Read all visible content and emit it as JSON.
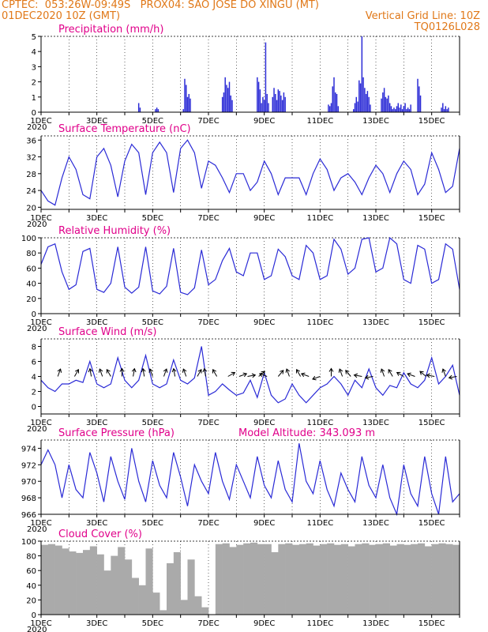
{
  "header": {
    "line1_left": "CPTEC:  053:26W-09:49S   PROX04: SAO JOSE DO XINGU (MT)",
    "line2_left": "01DEC2020 10Z (GMT)",
    "line2_right": "Vertical Grid Line: 10Z",
    "line3_right": "TQ0126L028"
  },
  "colors": {
    "header": "#e07818",
    "title": "#e0008a",
    "line": "#2a2ad6",
    "cloud": "#aaaaaa",
    "arrow": "#000000"
  },
  "x_axis": {
    "days": 15,
    "labels": [
      "1DEC",
      "3DEC",
      "5DEC",
      "7DEC",
      "9DEC",
      "11DEC",
      "13DEC",
      "15DEC"
    ],
    "label_days": [
      0,
      2,
      4,
      6,
      8,
      10,
      12,
      14
    ],
    "year_label": "2020"
  },
  "chart_data": [
    {
      "id": "precip",
      "type": "bar",
      "title": "Precipitation (mm/h)",
      "xlabel": "",
      "ylabel": "",
      "ylim": [
        0,
        5
      ],
      "yticks": [
        0,
        1,
        2,
        3,
        4,
        5
      ],
      "x": [
        3.5,
        3.55,
        4.1,
        4.15,
        4.2,
        5.1,
        5.15,
        5.2,
        5.25,
        5.3,
        5.35,
        6.5,
        6.55,
        6.6,
        6.65,
        6.7,
        6.75,
        6.8,
        6.85,
        7.75,
        7.8,
        7.85,
        7.9,
        7.95,
        8.0,
        8.05,
        8.1,
        8.15,
        8.3,
        8.35,
        8.4,
        8.45,
        8.5,
        8.55,
        8.6,
        8.65,
        8.7,
        8.75,
        10.3,
        10.35,
        10.4,
        10.45,
        10.5,
        10.55,
        10.6,
        10.65,
        11.2,
        11.25,
        11.3,
        11.35,
        11.4,
        11.45,
        11.5,
        11.55,
        11.6,
        11.65,
        11.7,
        11.75,
        11.8,
        12.2,
        12.25,
        12.3,
        12.35,
        12.4,
        12.45,
        12.5,
        12.55,
        12.6,
        12.65,
        12.7,
        12.75,
        12.8,
        12.85,
        12.9,
        12.95,
        13.0,
        13.05,
        13.1,
        13.15,
        13.2,
        13.25,
        13.5,
        13.55,
        13.6,
        14.35,
        14.4,
        14.45,
        14.5,
        14.55,
        14.6
      ],
      "values": [
        0.6,
        0.3,
        0.2,
        0.3,
        0.2,
        0.2,
        2.2,
        1.8,
        1.0,
        1.2,
        0.9,
        1.0,
        1.3,
        2.3,
        1.8,
        1.6,
        2.0,
        1.1,
        0.8,
        2.3,
        2.0,
        1.5,
        0.6,
        1.0,
        0.8,
        4.6,
        1.2,
        0.6,
        1.0,
        1.6,
        1.2,
        0.8,
        1.5,
        1.4,
        1.1,
        0.8,
        1.3,
        1.0,
        0.5,
        0.4,
        0.6,
        1.7,
        2.3,
        1.3,
        1.2,
        0.4,
        0.2,
        0.6,
        1.0,
        0.7,
        2.1,
        1.9,
        5.0,
        2.3,
        1.6,
        1.2,
        1.4,
        1.0,
        0.5,
        0.9,
        1.3,
        1.6,
        1.0,
        0.9,
        1.1,
        0.6,
        0.4,
        0.2,
        0.3,
        0.2,
        0.4,
        0.6,
        0.3,
        0.5,
        0.2,
        0.4,
        0.6,
        0.2,
        0.3,
        0.2,
        0.5,
        2.2,
        1.7,
        1.1,
        0.3,
        0.6,
        0.2,
        0.4,
        0.2,
        0.3
      ]
    },
    {
      "id": "temp",
      "type": "line",
      "title": "Surface Temperature (nC)",
      "xlabel": "",
      "ylabel": "",
      "ylim": [
        19.5,
        37
      ],
      "yticks": [
        20,
        24,
        28,
        32,
        36
      ],
      "x": [
        0,
        0.25,
        0.5,
        0.75,
        1,
        1.25,
        1.5,
        1.75,
        2,
        2.25,
        2.5,
        2.75,
        3,
        3.25,
        3.5,
        3.75,
        4,
        4.25,
        4.5,
        4.75,
        5,
        5.25,
        5.5,
        5.75,
        6,
        6.25,
        6.5,
        6.75,
        7,
        7.25,
        7.5,
        7.75,
        8,
        8.25,
        8.5,
        8.75,
        9,
        9.25,
        9.5,
        9.75,
        10,
        10.25,
        10.5,
        10.75,
        11,
        11.25,
        11.5,
        11.75,
        12,
        12.25,
        12.5,
        12.75,
        13,
        13.25,
        13.5,
        13.75,
        14,
        14.25,
        14.5,
        14.75,
        15
      ],
      "values": [
        24.0,
        21.5,
        20.5,
        27.0,
        32.0,
        29.0,
        23.0,
        22.0,
        32.0,
        34.0,
        30.0,
        22.5,
        31.0,
        35.0,
        33.0,
        23.0,
        33.0,
        35.5,
        33.0,
        23.5,
        34.0,
        36.0,
        33.0,
        24.5,
        31.0,
        30.0,
        27.0,
        23.5,
        28.0,
        28.0,
        24.0,
        26.0,
        31.0,
        28.0,
        23.0,
        27.0,
        27.0,
        27.0,
        23.0,
        28.0,
        31.5,
        29.0,
        24.0,
        27.0,
        28.0,
        26.0,
        23.0,
        27.0,
        30.0,
        28.0,
        23.5,
        28.0,
        31.0,
        29.0,
        23.0,
        25.5,
        33.0,
        29.0,
        23.5,
        25.0,
        34.0
      ]
    },
    {
      "id": "rh",
      "type": "line",
      "title": "Relative Humidity (%)",
      "xlabel": "",
      "ylabel": "",
      "ylim": [
        0,
        100
      ],
      "yticks": [
        0,
        20,
        40,
        60,
        80,
        100
      ],
      "x": [
        0,
        0.25,
        0.5,
        0.75,
        1,
        1.25,
        1.5,
        1.75,
        2,
        2.25,
        2.5,
        2.75,
        3,
        3.25,
        3.5,
        3.75,
        4,
        4.25,
        4.5,
        4.75,
        5,
        5.25,
        5.5,
        5.75,
        6,
        6.25,
        6.5,
        6.75,
        7,
        7.25,
        7.5,
        7.75,
        8,
        8.25,
        8.5,
        8.75,
        9,
        9.25,
        9.5,
        9.75,
        10,
        10.25,
        10.5,
        10.75,
        11,
        11.25,
        11.5,
        11.75,
        12,
        12.25,
        12.5,
        12.75,
        13,
        13.25,
        13.5,
        13.75,
        14,
        14.25,
        14.5,
        14.75,
        15
      ],
      "values": [
        65.0,
        88.0,
        92.0,
        55.0,
        32.0,
        38.0,
        82.0,
        86.0,
        32.0,
        28.0,
        40.0,
        88.0,
        35.0,
        27.0,
        35.0,
        88.0,
        30.0,
        26.0,
        36.0,
        86.0,
        28.0,
        25.0,
        34.0,
        84.0,
        38.0,
        45.0,
        70.0,
        86.0,
        55.0,
        50.0,
        80.0,
        80.0,
        45.0,
        50.0,
        85.0,
        75.0,
        50.0,
        45.0,
        90.0,
        80.0,
        45.0,
        50.0,
        98.0,
        85.0,
        52.0,
        60.0,
        98.0,
        100.0,
        55.0,
        60.0,
        100.0,
        92.0,
        45.0,
        40.0,
        90.0,
        85.0,
        40.0,
        45.0,
        92.0,
        85.0,
        32.0
      ]
    },
    {
      "id": "wind",
      "type": "line",
      "title": "Surface Wind (m/s)",
      "xlabel": "",
      "ylabel": "",
      "ylim": [
        -1,
        9
      ],
      "yticks": [
        0,
        2,
        4,
        6,
        8
      ],
      "x": [
        0,
        0.25,
        0.5,
        0.75,
        1,
        1.25,
        1.5,
        1.75,
        2,
        2.25,
        2.5,
        2.75,
        3,
        3.25,
        3.5,
        3.75,
        4,
        4.25,
        4.5,
        4.75,
        5,
        5.25,
        5.5,
        5.75,
        6,
        6.25,
        6.5,
        6.75,
        7,
        7.25,
        7.5,
        7.75,
        8,
        8.25,
        8.5,
        8.75,
        9,
        9.25,
        9.5,
        9.75,
        10,
        10.25,
        10.5,
        10.75,
        11,
        11.25,
        11.5,
        11.75,
        12,
        12.25,
        12.5,
        12.75,
        13,
        13.25,
        13.5,
        13.75,
        14,
        14.25,
        14.5,
        14.75,
        15
      ],
      "values": [
        3.5,
        2.5,
        2.0,
        3.0,
        3.0,
        3.5,
        3.2,
        6.0,
        3.0,
        2.5,
        3.0,
        6.5,
        3.5,
        2.5,
        3.5,
        6.8,
        3.0,
        2.5,
        3.0,
        6.2,
        3.5,
        3.0,
        3.8,
        8.0,
        1.5,
        2.0,
        3.0,
        2.2,
        1.5,
        1.8,
        3.5,
        1.2,
        4.5,
        1.5,
        0.5,
        1.0,
        3.0,
        1.5,
        0.5,
        1.5,
        2.5,
        3.0,
        4.0,
        3.0,
        1.5,
        3.5,
        2.5,
        5.0,
        2.5,
        1.5,
        2.8,
        2.5,
        4.5,
        3.0,
        2.5,
        3.5,
        6.5,
        3.0,
        4.0,
        5.5,
        1.5
      ]
    },
    {
      "id": "pres",
      "type": "line",
      "title": "Surface Pressure (hPa)",
      "annotation": "Model Altitude: 343.093  m",
      "xlabel": "",
      "ylabel": "",
      "ylim": [
        966,
        975
      ],
      "yticks": [
        966,
        968,
        970,
        972,
        974
      ],
      "x": [
        0,
        0.25,
        0.5,
        0.75,
        1,
        1.25,
        1.5,
        1.75,
        2,
        2.25,
        2.5,
        2.75,
        3,
        3.25,
        3.5,
        3.75,
        4,
        4.25,
        4.5,
        4.75,
        5,
        5.25,
        5.5,
        5.75,
        6,
        6.25,
        6.5,
        6.75,
        7,
        7.25,
        7.5,
        7.75,
        8,
        8.25,
        8.5,
        8.75,
        9,
        9.25,
        9.5,
        9.75,
        10,
        10.25,
        10.5,
        10.75,
        11,
        11.25,
        11.5,
        11.75,
        12,
        12.25,
        12.5,
        12.75,
        13,
        13.25,
        13.5,
        13.75,
        14,
        14.25,
        14.5,
        14.75,
        15
      ],
      "values": [
        972.0,
        973.8,
        972.0,
        968.0,
        972.0,
        969.0,
        968.0,
        973.5,
        971.0,
        967.5,
        973.0,
        970.0,
        967.8,
        974.0,
        970.0,
        967.5,
        972.5,
        969.5,
        968.0,
        973.5,
        970.5,
        967.0,
        972.0,
        970.0,
        968.5,
        973.5,
        970.0,
        967.8,
        972.0,
        970.0,
        968.0,
        973.0,
        969.5,
        968.0,
        972.5,
        969.0,
        967.5,
        974.6,
        970.0,
        968.5,
        972.5,
        969.0,
        967.0,
        971.0,
        969.0,
        967.5,
        973.0,
        969.5,
        968.0,
        972.0,
        968.0,
        966.0,
        972.0,
        968.5,
        967.0,
        973.0,
        968.5,
        966.0,
        973.0,
        967.5,
        968.5
      ]
    },
    {
      "id": "cloud",
      "type": "area",
      "title": "Cloud Cover (%)",
      "xlabel": "",
      "ylabel": "",
      "ylim": [
        0,
        100
      ],
      "yticks": [
        0,
        20,
        40,
        60,
        80,
        100
      ],
      "x": [
        0,
        0.25,
        0.5,
        0.75,
        1,
        1.25,
        1.5,
        1.75,
        2,
        2.25,
        2.5,
        2.75,
        3,
        3.25,
        3.5,
        3.75,
        4,
        4.25,
        4.5,
        4.75,
        5,
        5.25,
        5.5,
        5.75,
        6,
        6.25,
        6.5,
        6.75,
        7,
        7.25,
        7.5,
        7.75,
        8,
        8.25,
        8.5,
        8.75,
        9,
        9.25,
        9.5,
        9.75,
        10,
        10.25,
        10.5,
        10.75,
        11,
        11.25,
        11.5,
        11.75,
        12,
        12.25,
        12.5,
        12.75,
        13,
        13.25,
        13.5,
        13.75,
        14,
        14.25,
        14.5,
        14.75,
        15
      ],
      "values": [
        95,
        96,
        94,
        90,
        86,
        84,
        88,
        93,
        82,
        60,
        80,
        92,
        75,
        50,
        40,
        90,
        30,
        6,
        70,
        85,
        20,
        75,
        25,
        10,
        0,
        96,
        97,
        92,
        95,
        97,
        98,
        96,
        96,
        85,
        96,
        97,
        95,
        96,
        97,
        94,
        96,
        97,
        95,
        96,
        93,
        96,
        97,
        95,
        96,
        97,
        94,
        96,
        95,
        96,
        97,
        93,
        96,
        97,
        96,
        95,
        96
      ]
    }
  ],
  "wind_arrows": {
    "x": [
      0.6,
      1.2,
      1.8,
      2.2,
      2.5,
      2.9,
      3.3,
      3.7,
      4.0,
      4.4,
      4.8,
      5.2,
      5.6,
      5.9,
      6.3,
      6.7,
      7.1,
      7.4,
      7.8,
      8.1,
      8.5,
      8.9,
      9.3,
      9.6,
      10.0,
      10.4,
      10.8,
      11.1,
      11.5,
      11.9,
      12.3,
      12.6,
      13.0,
      13.4,
      13.8,
      14.1,
      14.5,
      14.9
    ],
    "dir_deg": [
      160,
      150,
      190,
      200,
      210,
      180,
      170,
      190,
      200,
      160,
      190,
      200,
      150,
      190,
      210,
      120,
      110,
      100,
      130,
      250,
      140,
      200,
      210,
      250,
      290,
      180,
      200,
      220,
      260,
      280,
      200,
      210,
      240,
      250,
      230,
      260,
      200,
      280
    ]
  }
}
